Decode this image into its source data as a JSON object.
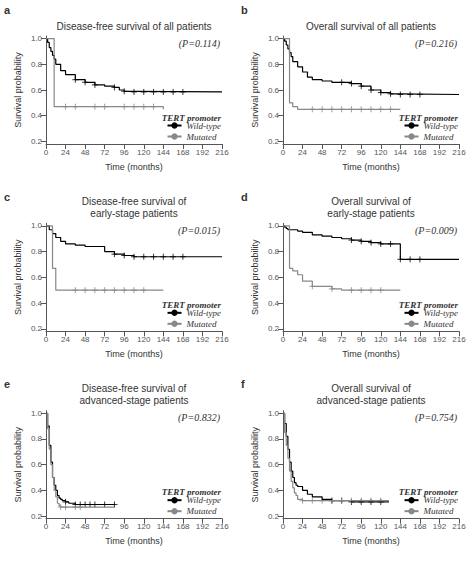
{
  "chart_data": [
    {
      "type": "step",
      "title": "Disease-free survival of all patients",
      "panel_label": "a",
      "annotation": "(P=0.114)",
      "xlabel": "Time (months)",
      "ylabel": "Survival probability",
      "xlim": [
        0,
        216
      ],
      "ylim": [
        0.18,
        1.02
      ],
      "xticks": [
        0,
        24,
        48,
        72,
        96,
        120,
        144,
        168,
        192,
        216
      ],
      "yticks": [
        0.2,
        0.4,
        0.6,
        0.8,
        {
          "value": 1.0,
          "label": "1.0"
        }
      ],
      "grid": false,
      "legend": "lower right",
      "legend_title": "TERT promoter",
      "series": [
        {
          "name": "Wild-type",
          "color": "#000000",
          "marker": "plus",
          "x": [
            0,
            2,
            4,
            6,
            8,
            10,
            12,
            18,
            24,
            36,
            48,
            60,
            72,
            84,
            90,
            96,
            108,
            216
          ],
          "values": [
            1.0,
            0.97,
            0.93,
            0.9,
            0.87,
            0.84,
            0.8,
            0.75,
            0.72,
            0.68,
            0.66,
            0.64,
            0.63,
            0.62,
            0.6,
            0.59,
            0.585,
            0.585
          ],
          "censors": {
            "x": [
              36,
              48,
              60,
              84,
              96,
              108,
              120,
              132,
              144,
              156,
              168
            ],
            "values": [
              0.68,
              0.66,
              0.64,
              0.62,
              0.59,
              0.585,
              0.585,
              0.585,
              0.585,
              0.585,
              0.585
            ]
          }
        },
        {
          "name": "Mutated",
          "color": "#888888",
          "marker": "plus",
          "x": [
            0,
            10,
            12,
            144
          ],
          "values": [
            1.0,
            0.47,
            0.47,
            0.45
          ],
          "censors": {
            "x": [
              24,
              36,
              60,
              72,
              96,
              108,
              120,
              132
            ],
            "values": [
              0.47,
              0.47,
              0.47,
              0.47,
              0.47,
              0.47,
              0.47,
              0.47
            ]
          }
        }
      ]
    },
    {
      "type": "step",
      "title": "Overall survival of all patients",
      "panel_label": "b",
      "annotation": "(P=0.216)",
      "xlabel": "Time (months)",
      "ylabel": "Survival probability",
      "xlim": [
        0,
        216
      ],
      "ylim": [
        0.18,
        1.02
      ],
      "xticks": [
        0,
        24,
        48,
        72,
        96,
        120,
        144,
        168,
        192,
        216
      ],
      "yticks": [
        0.2,
        0.4,
        0.6,
        0.8,
        {
          "value": 1.0,
          "label": "1.0"
        }
      ],
      "grid": false,
      "legend": "lower right",
      "legend_title": "TERT promoter",
      "series": [
        {
          "name": "Wild-type",
          "color": "#000000",
          "marker": "plus",
          "x": [
            0,
            2,
            4,
            6,
            8,
            10,
            12,
            18,
            24,
            30,
            36,
            48,
            60,
            72,
            84,
            96,
            108,
            120,
            132,
            144,
            216
          ],
          "values": [
            1.0,
            0.98,
            0.95,
            0.92,
            0.89,
            0.86,
            0.82,
            0.78,
            0.74,
            0.7,
            0.68,
            0.67,
            0.66,
            0.66,
            0.65,
            0.63,
            0.6,
            0.58,
            0.57,
            0.565,
            0.565
          ],
          "censors": {
            "x": [
              72,
              84,
              96,
              108,
              120,
              132,
              144,
              156,
              168
            ],
            "values": [
              0.66,
              0.65,
              0.63,
              0.6,
              0.58,
              0.57,
              0.565,
              0.565,
              0.565
            ]
          }
        },
        {
          "name": "Mutated",
          "color": "#888888",
          "marker": "plus",
          "x": [
            0,
            8,
            12,
            18,
            144
          ],
          "values": [
            1.0,
            0.5,
            0.47,
            0.45,
            0.45
          ],
          "censors": {
            "x": [
              36,
              48,
              60,
              72,
              84,
              96,
              108,
              120,
              132
            ],
            "values": [
              0.45,
              0.45,
              0.45,
              0.45,
              0.45,
              0.45,
              0.45,
              0.45,
              0.45
            ]
          }
        }
      ]
    },
    {
      "type": "step",
      "title": "Disease-free survival of\nearly-stage patients",
      "panel_label": "c",
      "annotation": "(P=0.015)",
      "xlabel": "Time (months)",
      "ylabel": "Survival probability",
      "xlim": [
        0,
        216
      ],
      "ylim": [
        0.18,
        1.02
      ],
      "xticks": [
        0,
        24,
        48,
        72,
        96,
        120,
        144,
        168,
        192,
        216
      ],
      "yticks": [
        0.2,
        0.4,
        0.6,
        0.8,
        {
          "value": 1.0,
          "label": "1.0"
        }
      ],
      "grid": false,
      "legend": "lower right",
      "legend_title": "TERT promoter",
      "series": [
        {
          "name": "Wild-type",
          "color": "#000000",
          "marker": "plus",
          "x": [
            0,
            4,
            8,
            12,
            18,
            24,
            36,
            48,
            60,
            72,
            84,
            96,
            108,
            120,
            144,
            216
          ],
          "values": [
            1.0,
            0.97,
            0.94,
            0.91,
            0.88,
            0.86,
            0.85,
            0.84,
            0.84,
            0.8,
            0.78,
            0.77,
            0.76,
            0.76,
            0.76,
            0.76
          ],
          "censors": {
            "x": [
              84,
              96,
              108,
              120,
              132,
              144,
              156,
              168
            ],
            "values": [
              0.78,
              0.77,
              0.76,
              0.76,
              0.76,
              0.76,
              0.76,
              0.76
            ]
          }
        },
        {
          "name": "Mutated",
          "color": "#888888",
          "marker": "plus",
          "x": [
            0,
            8,
            12,
            144
          ],
          "values": [
            1.0,
            0.67,
            0.5,
            0.5
          ],
          "censors": {
            "x": [
              36,
              48,
              60,
              72,
              84,
              96,
              108,
              120
            ],
            "values": [
              0.5,
              0.5,
              0.5,
              0.5,
              0.5,
              0.5,
              0.5,
              0.5
            ]
          }
        }
      ]
    },
    {
      "type": "step",
      "title": "Overall survival of\nearly-stage patients",
      "panel_label": "d",
      "annotation": "(P=0.009)",
      "xlabel": "Time (months)",
      "ylabel": "Survival probability",
      "xlim": [
        0,
        216
      ],
      "ylim": [
        0.18,
        1.02
      ],
      "xticks": [
        0,
        24,
        48,
        72,
        96,
        120,
        144,
        168,
        192,
        216
      ],
      "yticks": [
        0.2,
        0.4,
        0.6,
        0.8,
        {
          "value": 1.0,
          "label": "1.0"
        }
      ],
      "grid": false,
      "legend": "lower right",
      "legend_title": "TERT promoter",
      "series": [
        {
          "name": "Wild-type",
          "color": "#000000",
          "marker": "plus",
          "x": [
            0,
            2,
            4,
            6,
            18,
            24,
            36,
            48,
            60,
            72,
            84,
            96,
            108,
            120,
            144,
            216
          ],
          "values": [
            1.0,
            0.99,
            0.98,
            0.97,
            0.96,
            0.95,
            0.93,
            0.92,
            0.91,
            0.9,
            0.89,
            0.88,
            0.87,
            0.86,
            0.74,
            0.74
          ],
          "censors": {
            "x": [
              84,
              96,
              108,
              120,
              132,
              144,
              156,
              168
            ],
            "values": [
              0.89,
              0.88,
              0.87,
              0.86,
              0.86,
              0.74,
              0.74,
              0.74
            ]
          }
        },
        {
          "name": "Mutated",
          "color": "#888888",
          "marker": "plus",
          "x": [
            0,
            8,
            12,
            18,
            24,
            36,
            60,
            72,
            144
          ],
          "values": [
            1.0,
            0.67,
            0.65,
            0.62,
            0.57,
            0.53,
            0.51,
            0.5,
            0.5
          ],
          "censors": {
            "x": [
              36,
              60,
              84,
              96,
              108,
              120
            ],
            "values": [
              0.53,
              0.51,
              0.5,
              0.5,
              0.5,
              0.5
            ]
          }
        }
      ]
    },
    {
      "type": "step",
      "title": "Disease-free survival of\nadvanced-stage patients",
      "panel_label": "e",
      "annotation": "(P=0.832)",
      "xlabel": "Time (months)",
      "ylabel": "Survival probability",
      "xlim": [
        0,
        216
      ],
      "ylim": [
        0.18,
        1.02
      ],
      "xticks": [
        0,
        24,
        48,
        72,
        96,
        120,
        144,
        168,
        192,
        216
      ],
      "yticks": [
        0.2,
        0.4,
        0.6,
        0.8,
        {
          "value": 1.0,
          "label": "1.0"
        }
      ],
      "grid": false,
      "legend": "lower right",
      "legend_title": "TERT promoter",
      "series": [
        {
          "name": "Wild-type",
          "color": "#000000",
          "marker": "plus",
          "x": [
            0,
            2,
            4,
            6,
            8,
            10,
            12,
            14,
            16,
            18,
            20,
            24,
            28,
            36,
            84
          ],
          "values": [
            1.0,
            0.9,
            0.75,
            0.62,
            0.5,
            0.44,
            0.4,
            0.36,
            0.34,
            0.33,
            0.32,
            0.31,
            0.3,
            0.29,
            0.29
          ],
          "censors": {
            "x": [
              24,
              36,
              42,
              48,
              54,
              60,
              72,
              84
            ],
            "values": [
              0.31,
              0.29,
              0.29,
              0.29,
              0.29,
              0.29,
              0.29,
              0.29
            ]
          }
        },
        {
          "name": "Mutated",
          "color": "#888888",
          "marker": "plus",
          "x": [
            0,
            2,
            4,
            6,
            8,
            10,
            12,
            14,
            16,
            18,
            24,
            84
          ],
          "values": [
            1.0,
            0.88,
            0.72,
            0.6,
            0.5,
            0.4,
            0.35,
            0.3,
            0.28,
            0.27,
            0.27,
            0.27
          ],
          "censors": {
            "x": [
              18,
              24,
              36,
              42
            ],
            "values": [
              0.27,
              0.27,
              0.27,
              0.27
            ]
          }
        }
      ]
    },
    {
      "type": "step",
      "title": "Overall survival of\nadvanced-stage patients",
      "panel_label": "f",
      "annotation": "(P=0.754)",
      "xlabel": "Time (months)",
      "ylabel": "Survival probability",
      "xlim": [
        0,
        216
      ],
      "ylim": [
        0.18,
        1.02
      ],
      "xticks": [
        0,
        24,
        48,
        72,
        96,
        120,
        144,
        168,
        192,
        216
      ],
      "yticks": [
        0.2,
        0.4,
        0.6,
        0.8,
        {
          "value": 1.0,
          "label": "1.0"
        }
      ],
      "grid": false,
      "legend": "lower right",
      "legend_title": "TERT promoter",
      "series": [
        {
          "name": "Wild-type",
          "color": "#000000",
          "marker": "plus",
          "x": [
            0,
            2,
            4,
            6,
            8,
            10,
            12,
            14,
            16,
            18,
            24,
            30,
            36,
            48,
            60,
            72,
            84,
            120,
            130
          ],
          "values": [
            1.0,
            0.92,
            0.82,
            0.72,
            0.62,
            0.55,
            0.5,
            0.46,
            0.44,
            0.43,
            0.4,
            0.37,
            0.35,
            0.33,
            0.32,
            0.32,
            0.31,
            0.31,
            0.31
          ],
          "censors": {
            "x": [
              60,
              72,
              84,
              96,
              108,
              120
            ],
            "values": [
              0.32,
              0.32,
              0.31,
              0.31,
              0.31,
              0.31
            ]
          }
        },
        {
          "name": "Mutated",
          "color": "#888888",
          "marker": "plus",
          "x": [
            0,
            2,
            4,
            6,
            8,
            10,
            12,
            14,
            16,
            18,
            24,
            120,
            130
          ],
          "values": [
            1.0,
            0.85,
            0.75,
            0.65,
            0.55,
            0.47,
            0.42,
            0.38,
            0.36,
            0.33,
            0.32,
            0.32,
            0.32
          ],
          "censors": {
            "x": [
              24,
              36,
              48,
              60,
              72,
              84,
              96,
              108,
              120
            ],
            "values": [
              0.32,
              0.32,
              0.32,
              0.32,
              0.32,
              0.32,
              0.32,
              0.32,
              0.32
            ]
          }
        }
      ]
    }
  ]
}
